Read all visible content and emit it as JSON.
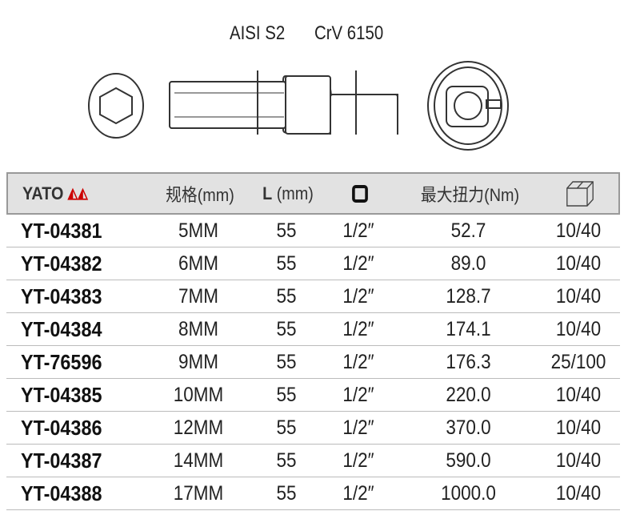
{
  "drawing": {
    "label_bit": "AISI S2",
    "label_socket": "CrV 6150"
  },
  "header": {
    "brand": "YATO",
    "size": "规格(mm)",
    "length_l": "L",
    "length_unit": "(mm)",
    "torque": "最大扭力(Nm)",
    "drive_icon": "square-drive-icon",
    "package_icon": "box-icon"
  },
  "rows": [
    {
      "code": "YT-04381",
      "size": "5MM",
      "length": "55",
      "drive": "1/2″",
      "torque": "52.7",
      "qty": "10/40"
    },
    {
      "code": "YT-04382",
      "size": "6MM",
      "length": "55",
      "drive": "1/2″",
      "torque": "89.0",
      "qty": "10/40"
    },
    {
      "code": "YT-04383",
      "size": "7MM",
      "length": "55",
      "drive": "1/2″",
      "torque": "128.7",
      "qty": "10/40"
    },
    {
      "code": "YT-04384",
      "size": "8MM",
      "length": "55",
      "drive": "1/2″",
      "torque": "174.1",
      "qty": "10/40"
    },
    {
      "code": "YT-76596",
      "size": "9MM",
      "length": "55",
      "drive": "1/2″",
      "torque": "176.3",
      "qty": "25/100"
    },
    {
      "code": "YT-04385",
      "size": "10MM",
      "length": "55",
      "drive": "1/2″",
      "torque": "220.0",
      "qty": "10/40"
    },
    {
      "code": "YT-04386",
      "size": "12MM",
      "length": "55",
      "drive": "1/2″",
      "torque": "370.0",
      "qty": "10/40"
    },
    {
      "code": "YT-04387",
      "size": "14MM",
      "length": "55",
      "drive": "1/2″",
      "torque": "590.0",
      "qty": "10/40"
    },
    {
      "code": "YT-04388",
      "size": "17MM",
      "length": "55",
      "drive": "1/2″",
      "torque": "1000.0",
      "qty": "10/40"
    }
  ]
}
